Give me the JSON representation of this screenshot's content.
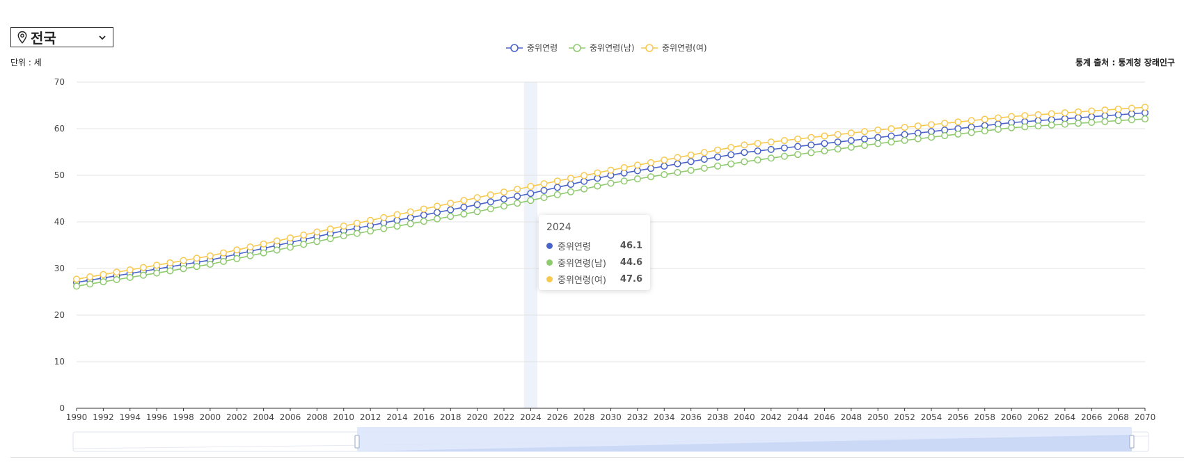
{
  "region": {
    "label": "전국",
    "pin_icon": "map-pin-icon",
    "chevron_icon": "chevron-down-icon"
  },
  "unit_label": "단위 : 세",
  "source_label": "통계 출처 : 통계청 장래인구",
  "tooltip": {
    "year": "2024",
    "rows": [
      {
        "name": "중위연령",
        "value": "46.1",
        "color": "#4a63c8"
      },
      {
        "name": "중위연령(남)",
        "value": "44.6",
        "color": "#8fcb6e"
      },
      {
        "name": "중위연령(여)",
        "value": "47.6",
        "color": "#f8c94f"
      }
    ]
  },
  "chart_data": {
    "type": "line",
    "title": "",
    "xlabel": "",
    "ylabel": "",
    "ylim": [
      0,
      70
    ],
    "yticks": [
      0,
      10,
      20,
      30,
      40,
      50,
      60,
      70
    ],
    "x_range": [
      1990,
      2070
    ],
    "x_tick_step": 2,
    "highlight_x": 2024,
    "legend_position": "top-center",
    "grid": true,
    "series": [
      {
        "name": "중위연령",
        "color": "#4a63c8",
        "anchors": [
          [
            1990,
            27.0
          ],
          [
            2000,
            31.8
          ],
          [
            2010,
            38.1
          ],
          [
            2020,
            43.7
          ],
          [
            2024,
            46.1
          ],
          [
            2030,
            50.0
          ],
          [
            2040,
            54.9
          ],
          [
            2050,
            58.1
          ],
          [
            2060,
            61.3
          ],
          [
            2070,
            63.4
          ]
        ]
      },
      {
        "name": "중위연령(남)",
        "color": "#8fcb6e",
        "anchors": [
          [
            1990,
            26.2
          ],
          [
            2000,
            30.9
          ],
          [
            2010,
            37.0
          ],
          [
            2020,
            42.2
          ],
          [
            2024,
            44.6
          ],
          [
            2030,
            48.3
          ],
          [
            2040,
            52.9
          ],
          [
            2050,
            56.8
          ],
          [
            2060,
            60.2
          ],
          [
            2070,
            62.1
          ]
        ]
      },
      {
        "name": "중위연령(여)",
        "color": "#f8c94f",
        "anchors": [
          [
            1990,
            27.7
          ],
          [
            2000,
            32.7
          ],
          [
            2010,
            39.1
          ],
          [
            2020,
            45.2
          ],
          [
            2024,
            47.6
          ],
          [
            2030,
            51.1
          ],
          [
            2040,
            56.5
          ],
          [
            2050,
            59.7
          ],
          [
            2060,
            62.6
          ],
          [
            2070,
            64.6
          ]
        ]
      }
    ]
  }
}
